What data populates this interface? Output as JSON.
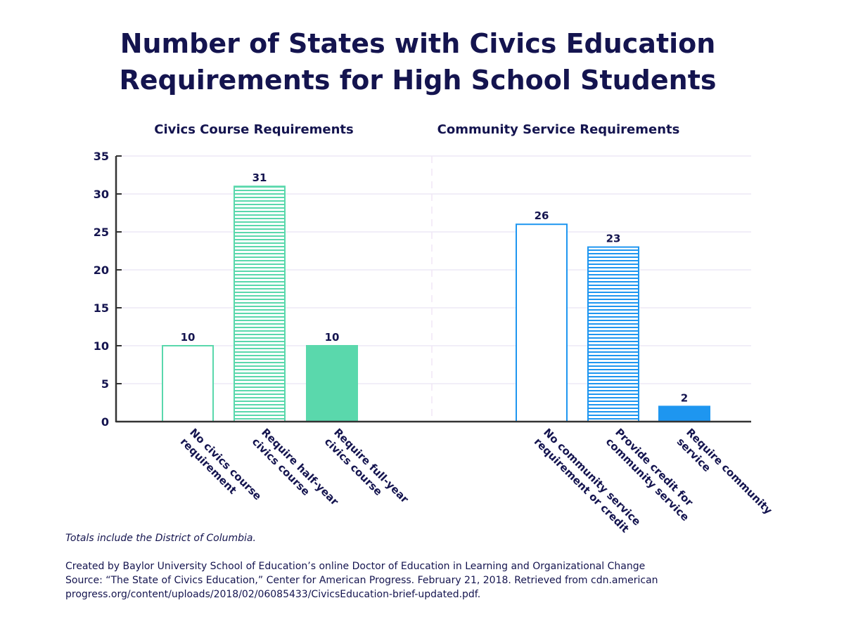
{
  "chart_data": {
    "type": "bar",
    "title_lines": [
      "Number of States with Civics Education",
      "Requirements for High School Students"
    ],
    "ylim": [
      0,
      35
    ],
    "yticks": [
      0,
      5,
      10,
      15,
      20,
      25,
      30,
      35
    ],
    "grid": true,
    "panels": [
      {
        "subtitle": "Civics Course Requirements",
        "color": "#5ad8ac",
        "categories": [
          [
            "No civics course",
            "requirement"
          ],
          [
            "Require half-year",
            "civics course"
          ],
          [
            "Require full-year",
            "civics course"
          ]
        ],
        "values": [
          10,
          31,
          10
        ],
        "styles": [
          "outline",
          "striped",
          "solid"
        ]
      },
      {
        "subtitle": "Community Service Requirements",
        "color": "#1e96f0",
        "categories": [
          [
            "No community service",
            "requirement or credit"
          ],
          [
            "Provide credit for",
            "community service"
          ],
          [
            "Require community",
            "service"
          ]
        ],
        "values": [
          26,
          23,
          2
        ],
        "styles": [
          "outline",
          "striped",
          "solid"
        ]
      }
    ]
  },
  "notes": {
    "footnote": "Totals include the District of Columbia.",
    "credit_lines": [
      "Created by Baylor University School of Education’s online Doctor of Education in Learning and Organizational Change",
      "Source: “The State of Civics Education,” Center for American Progress. February 21, 2018. Retrieved from cdn.american",
      "progress.org/content/uploads/2018/02/06085433/CivicsEducation-brief-updated.pdf."
    ]
  }
}
